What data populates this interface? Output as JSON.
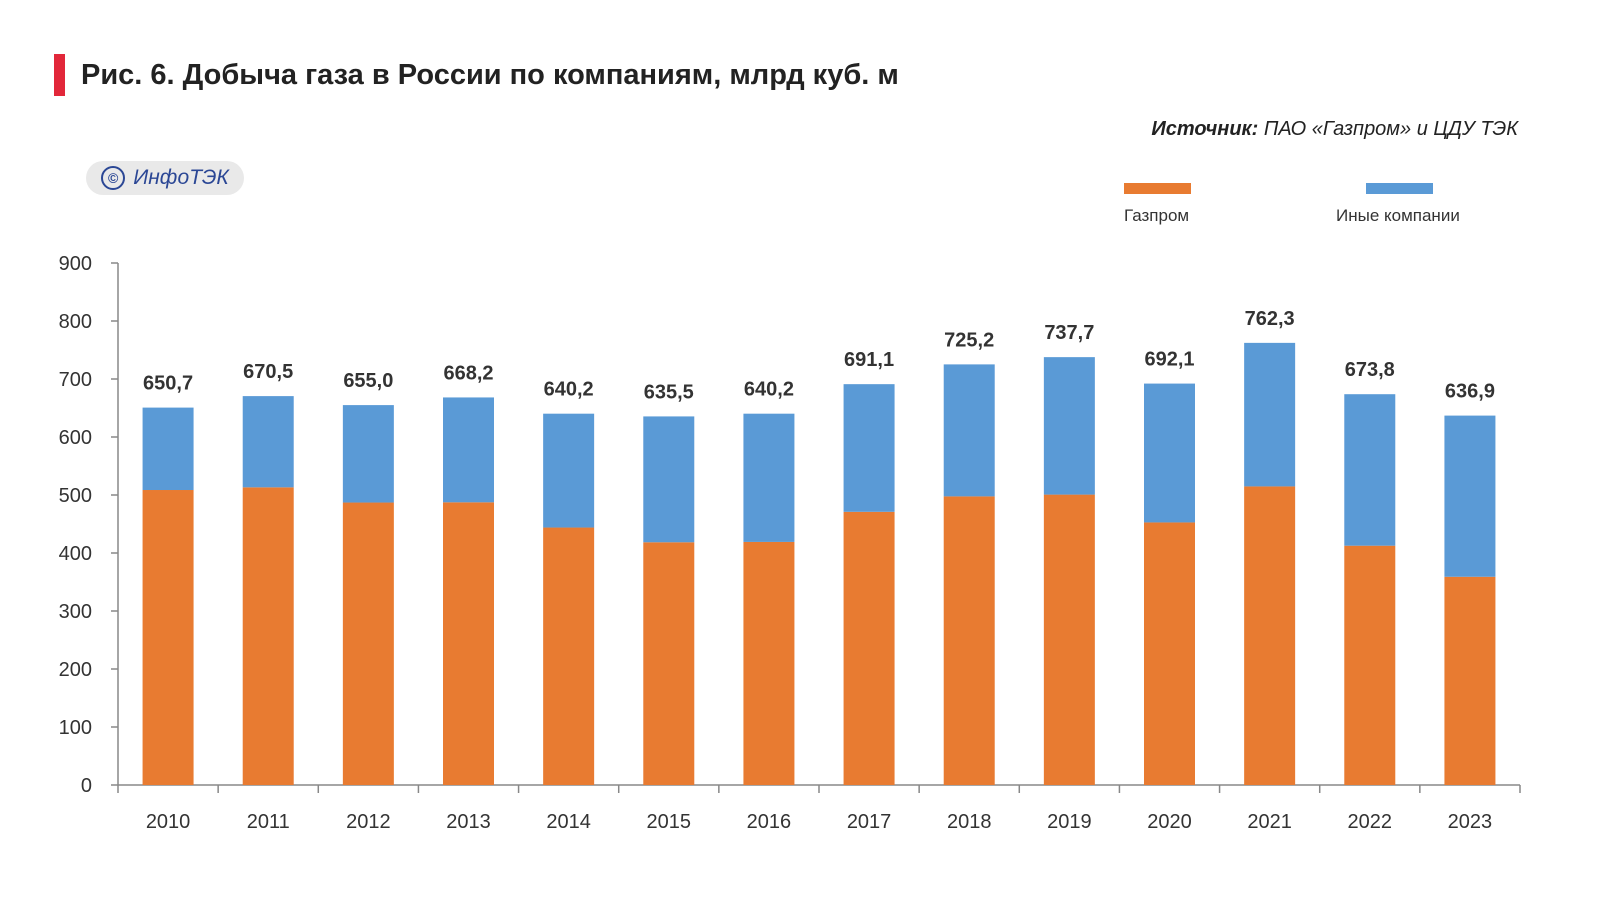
{
  "header": {
    "title": "Рис. 6. Добыча газа в России по компаниям, млрд куб. м",
    "source_prefix": "Источник:",
    "source_text": " ПАО «Газпром» и ЦДУ ТЭК",
    "watermark": "ИнфоТЭК",
    "watermark_symbol": "©"
  },
  "colors": {
    "gazprom": "#e87b31",
    "other": "#5a9ad6",
    "accent": "#e2273a"
  },
  "chart_data": {
    "type": "bar",
    "stacked": true,
    "title": "Рис. 6. Добыча газа в России по компаниям, млрд куб. м",
    "xlabel": "",
    "ylabel": "",
    "ylim": [
      0,
      900
    ],
    "yticks": [
      0,
      100,
      200,
      300,
      400,
      500,
      600,
      700,
      800,
      900
    ],
    "legend_position": "top-right",
    "grid": false,
    "categories": [
      "2010",
      "2011",
      "2012",
      "2013",
      "2014",
      "2015",
      "2016",
      "2017",
      "2018",
      "2019",
      "2020",
      "2021",
      "2022",
      "2023"
    ],
    "series": [
      {
        "name": "Газпром",
        "color": "#e87b31",
        "values": [
          508.6,
          513.2,
          487.0,
          487.4,
          443.9,
          418.5,
          419.1,
          471.0,
          497.6,
          500.7,
          452.7,
          514.8,
          412.6,
          359.0
        ]
      },
      {
        "name": "Иные компании",
        "color": "#5a9ad6",
        "values": [
          142.1,
          157.3,
          168.0,
          180.8,
          196.3,
          217.0,
          221.1,
          220.1,
          227.6,
          237.0,
          239.4,
          247.5,
          261.2,
          277.9
        ]
      }
    ],
    "totals": [
      650.7,
      670.5,
      655.0,
      668.2,
      640.2,
      635.5,
      640.2,
      691.1,
      725.2,
      737.7,
      692.1,
      762.3,
      673.8,
      636.9
    ],
    "total_labels": [
      "650,7",
      "670,5",
      "655,0",
      "668,2",
      "640,2",
      "635,5",
      "640,2",
      "691,1",
      "725,2",
      "737,7",
      "692,1",
      "762,3",
      "673,8",
      "636,9"
    ]
  }
}
